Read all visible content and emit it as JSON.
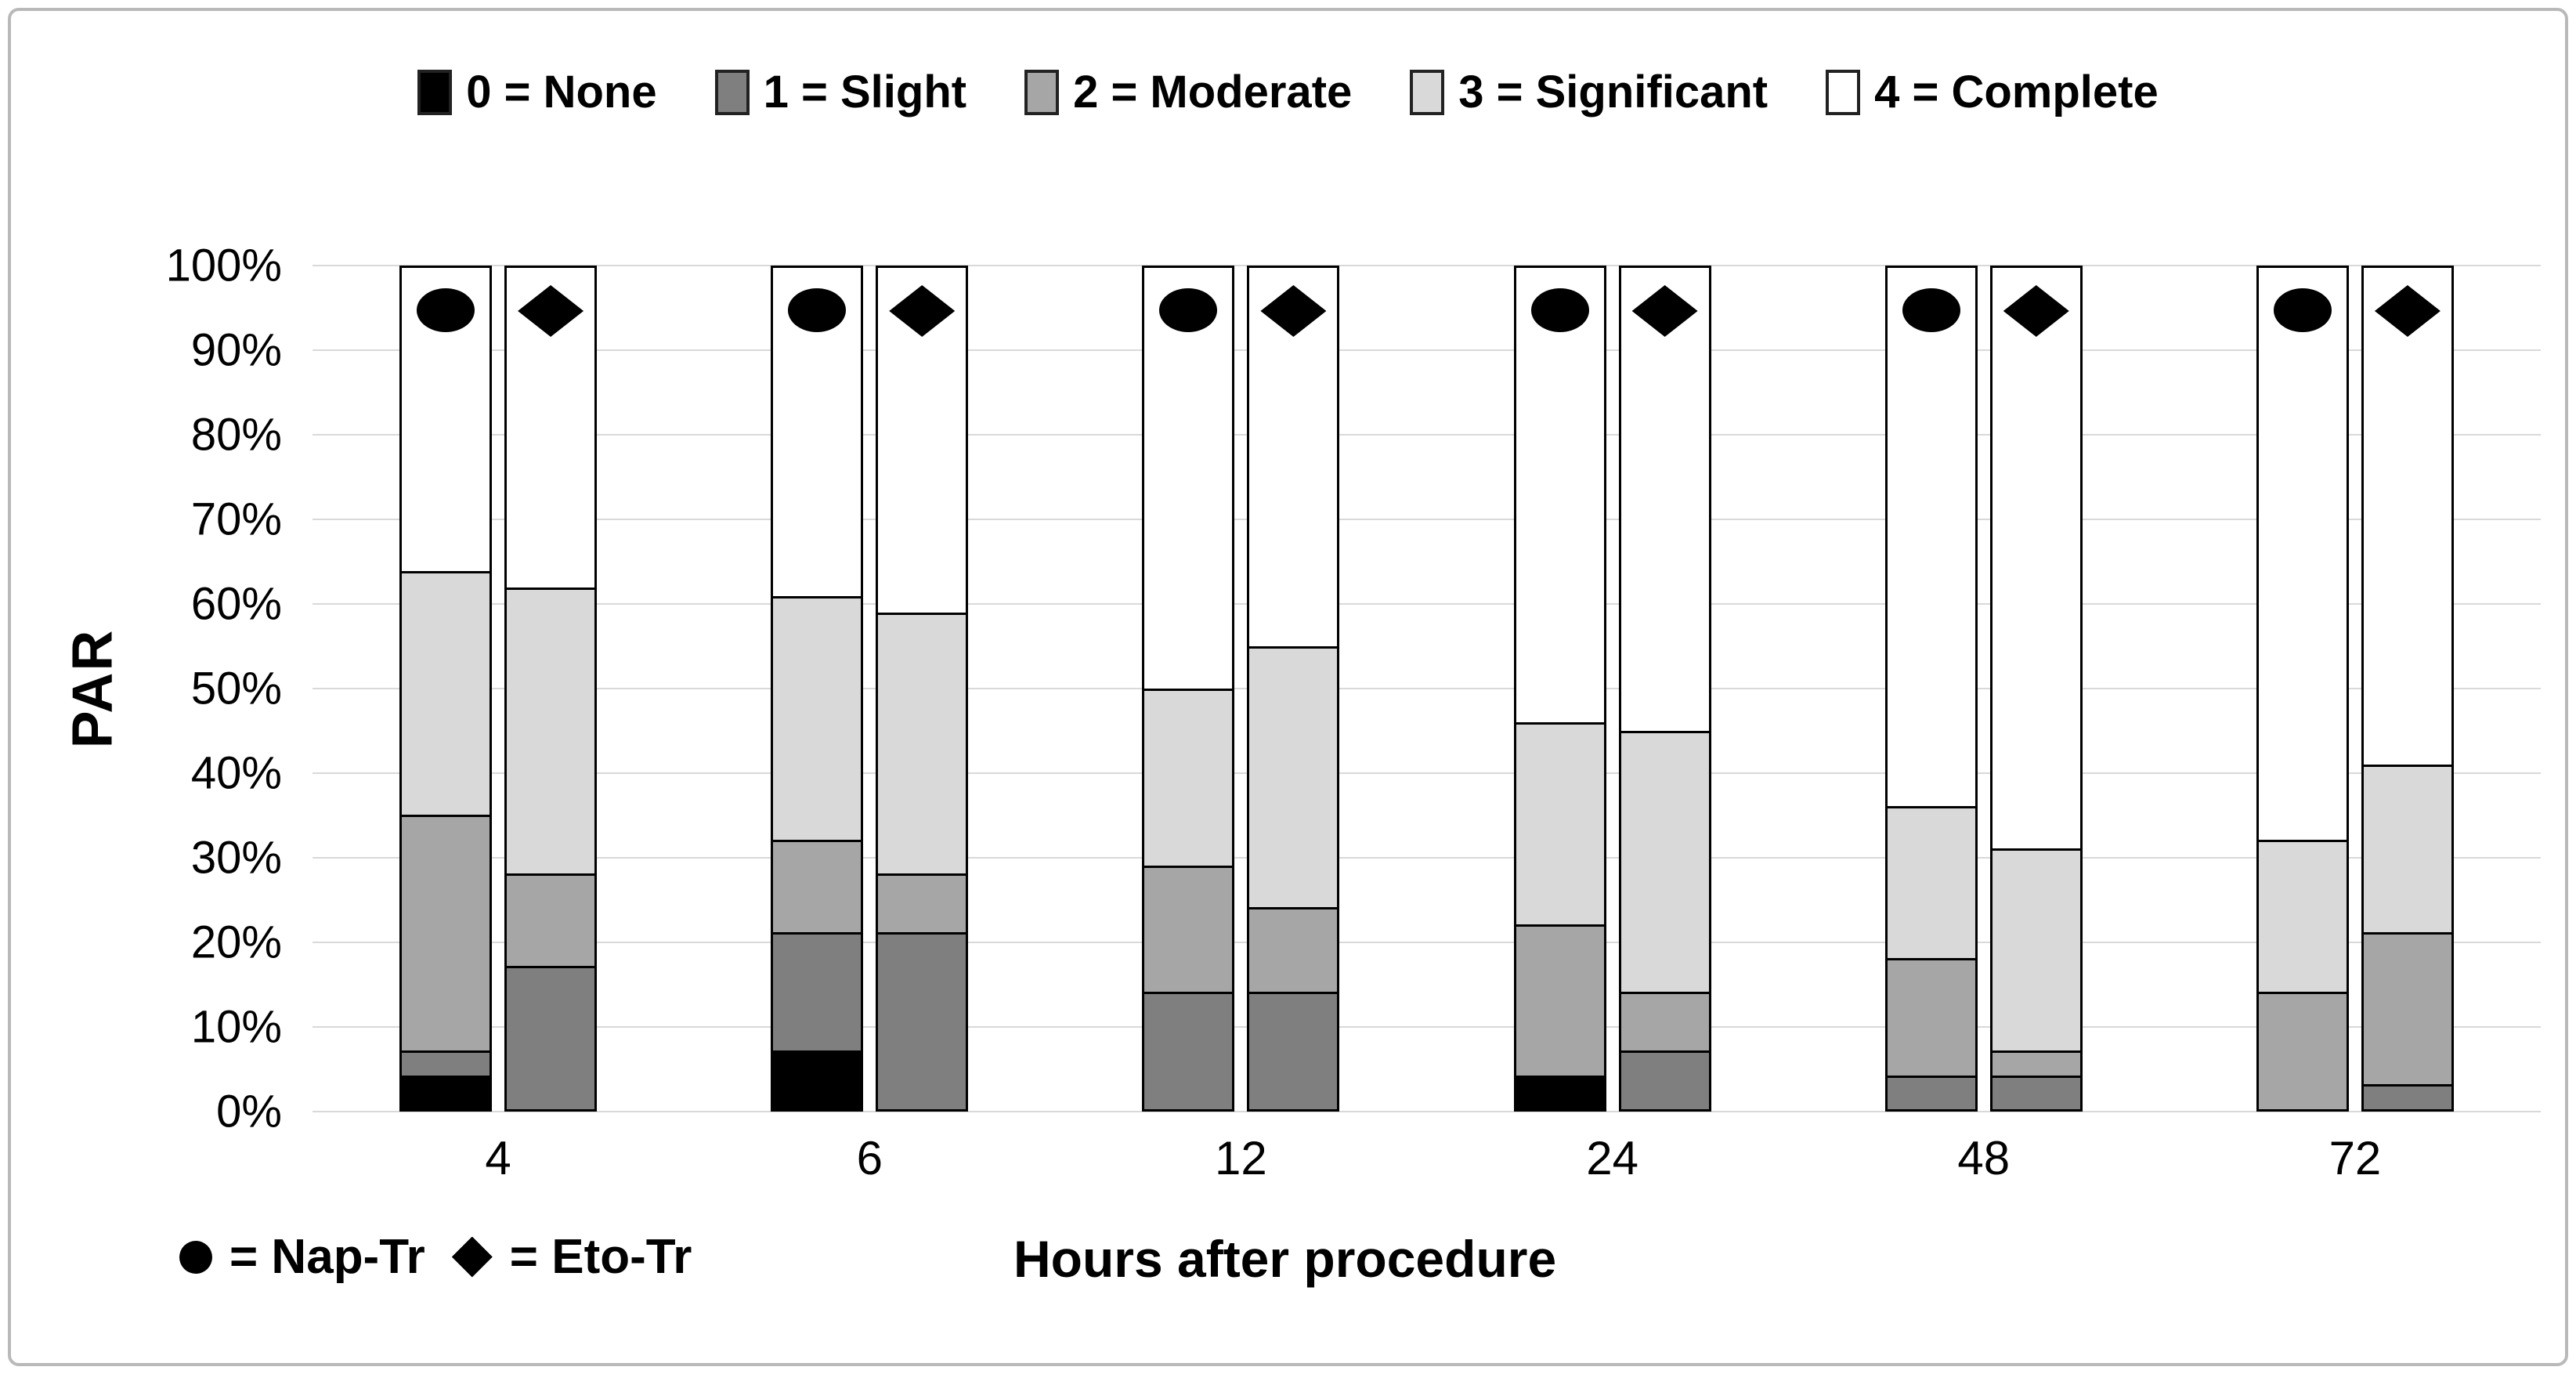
{
  "chart_data": {
    "type": "bar",
    "stacked": true,
    "title": "",
    "ylabel": "PAR",
    "xlabel": "Hours after procedure",
    "ylim": [
      0,
      100
    ],
    "grid": true,
    "yticks": [
      "100%",
      "90%",
      "80%",
      "70%",
      "60%",
      "50%",
      "40%",
      "30%",
      "20%",
      "10%",
      "0%"
    ],
    "x_categories": [
      "4",
      "6",
      "12",
      "24",
      "48",
      "72"
    ],
    "stack_levels": [
      {
        "label": "0 = None",
        "color": "#000000"
      },
      {
        "label": "1 = Slight",
        "color": "#7f7f7f"
      },
      {
        "label": "2 = Moderate",
        "color": "#a6a6a6"
      },
      {
        "label": "3 = Significant",
        "color": "#d9d9d9"
      },
      {
        "label": "4 = Complete",
        "color": "#ffffff"
      }
    ],
    "groups": [
      {
        "hour": "4",
        "bars": [
          {
            "name": "Nap-Tr",
            "marker": "circle",
            "values": [
              4,
              3,
              28,
              29,
              36
            ]
          },
          {
            "name": "Eto-Tr",
            "marker": "diamond",
            "values": [
              0,
              17,
              11,
              34,
              38
            ]
          }
        ]
      },
      {
        "hour": "6",
        "bars": [
          {
            "name": "Nap-Tr",
            "marker": "circle",
            "values": [
              7,
              14,
              11,
              29,
              39
            ]
          },
          {
            "name": "Eto-Tr",
            "marker": "diamond",
            "values": [
              0,
              21,
              7,
              31,
              41
            ]
          }
        ]
      },
      {
        "hour": "12",
        "bars": [
          {
            "name": "Nap-Tr",
            "marker": "circle",
            "values": [
              0,
              14,
              15,
              21,
              50
            ]
          },
          {
            "name": "Eto-Tr",
            "marker": "diamond",
            "values": [
              0,
              14,
              10,
              31,
              45
            ]
          }
        ]
      },
      {
        "hour": "24",
        "bars": [
          {
            "name": "Nap-Tr",
            "marker": "circle",
            "values": [
              4,
              0,
              18,
              24,
              54
            ]
          },
          {
            "name": "Eto-Tr",
            "marker": "diamond",
            "values": [
              0,
              7,
              7,
              31,
              55
            ]
          }
        ]
      },
      {
        "hour": "48",
        "bars": [
          {
            "name": "Nap-Tr",
            "marker": "circle",
            "values": [
              0,
              4,
              14,
              18,
              64
            ]
          },
          {
            "name": "Eto-Tr",
            "marker": "diamond",
            "values": [
              0,
              4,
              3,
              24,
              69
            ]
          }
        ]
      },
      {
        "hour": "72",
        "bars": [
          {
            "name": "Nap-Tr",
            "marker": "circle",
            "values": [
              0,
              0,
              14,
              18,
              68
            ]
          },
          {
            "name": "Eto-Tr",
            "marker": "diamond",
            "values": [
              0,
              3,
              18,
              20,
              59
            ]
          }
        ]
      }
    ],
    "legend_position": "top",
    "marker_legend": [
      {
        "marker": "circle",
        "label": "= Nap-Tr"
      },
      {
        "marker": "diamond",
        "label": "= Eto-Tr"
      }
    ]
  },
  "colors": {
    "none": "#000000",
    "slight": "#7f7f7f",
    "moderate": "#a6a6a6",
    "significant": "#d9d9d9",
    "complete": "#ffffff",
    "gridline": "#d9d9d9",
    "frame": "#b9b9b9"
  }
}
